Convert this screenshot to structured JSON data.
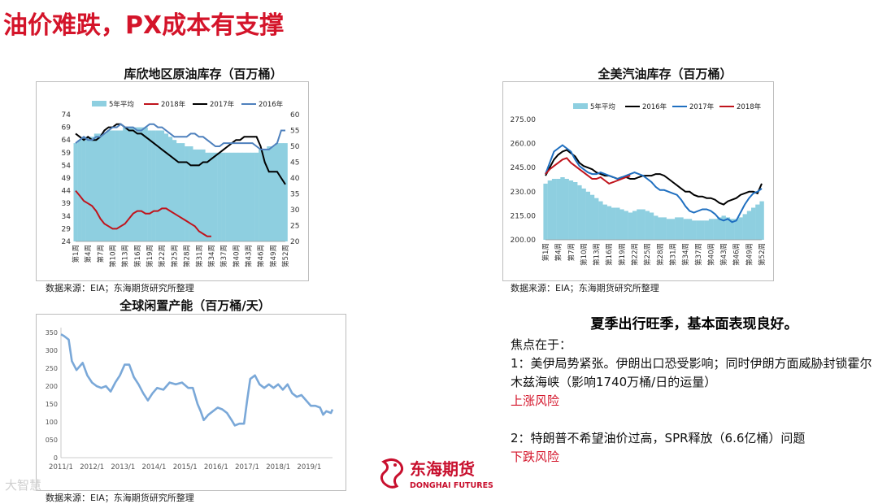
{
  "slide_title": "油价难跌，PX成本有支撑",
  "charts": {
    "c1": {
      "title": "库欣地区原油库存（百万桶）",
      "source": "数据来源：EIA；东海期货研究所整理"
    },
    "c2": {
      "title": "全美汽油库存（百万桶）",
      "source": "数据来源：EIA；东海期货研究所整理"
    },
    "c3": {
      "title": "全球闲置产能（百万桶/天）",
      "source": "数据来源：EIA；东海期货研究所整理"
    }
  },
  "analysis": {
    "headline": "夏季出行旺季，基本面表现良好。",
    "intro": "焦点在于：",
    "point1": "1：美伊局势紧张。伊朗出口恐受影响；同时伊朗方面威胁封锁霍尔木兹海峡（影响1740万桶/日的运量）",
    "risk1": "上涨风险",
    "point2": "2：特朗普不希望油价过高，SPR释放（6.6亿桶）问题",
    "risk2": "下跌风险"
  },
  "logo": {
    "cn": "东海期货",
    "en": "DONGHAI FUTURES",
    "color": "#c8102e"
  },
  "watermark": "大智慧",
  "chart_data": [
    {
      "id": "c1",
      "type": "area+line",
      "legend": [
        "5年平均",
        "2018年",
        "2017年",
        "2016年"
      ],
      "colors": {
        "5年平均": "#8ecfe0",
        "2018年": "#c0141c",
        "2017年": "#000000",
        "2016年": "#4f81bd"
      },
      "yleft": {
        "min": 24,
        "max": 74,
        "ticks": [
          24,
          29,
          34,
          39,
          44,
          49,
          54,
          59,
          64,
          69,
          74
        ]
      },
      "yright": {
        "min": 20,
        "max": 60,
        "ticks": [
          20,
          25,
          30,
          35,
          40,
          45,
          50,
          55,
          60
        ]
      },
      "xticks": [
        "第1周",
        "第4周",
        "第7周",
        "第10周",
        "第13周",
        "第16周",
        "第19周",
        "第22周",
        "第25周",
        "第28周",
        "第31周",
        "第34周",
        "第37周",
        "第40周",
        "第43周",
        "第46周",
        "第49周",
        "第52周"
      ],
      "weeks": 52,
      "area_axis": "right",
      "area": [
        51,
        52,
        53,
        53,
        53,
        54,
        54,
        54,
        55,
        55,
        55,
        55,
        56,
        56,
        56,
        56,
        56,
        56,
        55,
        55,
        55,
        55,
        54,
        53,
        52,
        51,
        51,
        50,
        50,
        49,
        49,
        49,
        48,
        48,
        48,
        48,
        48,
        48,
        48,
        48,
        48,
        48,
        48,
        48,
        48,
        49,
        49,
        50,
        50,
        51,
        51,
        51
      ],
      "series": [
        {
          "name": "2018年",
          "axis": "left",
          "values": [
            44,
            42,
            40,
            39,
            38,
            36,
            33,
            31,
            30,
            29,
            29,
            30,
            31,
            33,
            35,
            36,
            36,
            35,
            35,
            36,
            36,
            37,
            37,
            36,
            35,
            34,
            33,
            32,
            31,
            30,
            28,
            27,
            26,
            26,
            null,
            null,
            null,
            null,
            null,
            null,
            null,
            null,
            null,
            null,
            null,
            null,
            null,
            null,
            null,
            null,
            null,
            null
          ]
        },
        {
          "name": "2017年",
          "axis": "right",
          "values": [
            54,
            53,
            52,
            53,
            52,
            52,
            53,
            55,
            56,
            56,
            57,
            57,
            56,
            55,
            55,
            54,
            54,
            53,
            52,
            51,
            50,
            49,
            48,
            47,
            46,
            45,
            45,
            45,
            44,
            44,
            44,
            45,
            45,
            46,
            47,
            48,
            49,
            50,
            51,
            52,
            52,
            53,
            53,
            53,
            53,
            50,
            45,
            42,
            42,
            42,
            40,
            38
          ]
        },
        {
          "name": "2016年",
          "axis": "right",
          "values": [
            51,
            52,
            53,
            52,
            52,
            53,
            53,
            54,
            55,
            56,
            56,
            57,
            56,
            56,
            56,
            55,
            55,
            56,
            57,
            57,
            56,
            56,
            55,
            54,
            53,
            53,
            53,
            53,
            54,
            54,
            53,
            53,
            52,
            51,
            50,
            50,
            51,
            51,
            51,
            51,
            51,
            51,
            51,
            51,
            50,
            49,
            49,
            49,
            50,
            51,
            55,
            55
          ]
        }
      ]
    },
    {
      "id": "c2",
      "type": "area+line",
      "legend": [
        "5年平均",
        "2016年",
        "2017年",
        "2018年"
      ],
      "colors": {
        "5年平均": "#8ecfe0",
        "2016年": "#000000",
        "2017年": "#1f6fc0",
        "2018年": "#c0141c"
      },
      "y": {
        "min": 200,
        "max": 275,
        "ticks": [
          "200.00",
          "215.00",
          "230.00",
          "245.00",
          "260.00",
          "275.00"
        ]
      },
      "xticks": [
        "第1周",
        "第4周",
        "第7周",
        "第10周",
        "第13周",
        "第16周",
        "第19周",
        "第22周",
        "第25周",
        "第28周",
        "第31周",
        "第34周",
        "第37周",
        "第40周",
        "第43周",
        "第46周",
        "第49周",
        "第52周"
      ],
      "weeks": 52,
      "area": [
        235,
        237,
        238,
        238,
        239,
        238,
        237,
        236,
        234,
        232,
        230,
        228,
        226,
        224,
        222,
        221,
        220,
        220,
        219,
        218,
        217,
        218,
        219,
        219,
        218,
        217,
        215,
        214,
        214,
        213,
        213,
        214,
        214,
        213,
        213,
        212,
        212,
        212,
        212,
        213,
        213,
        214,
        215,
        214,
        213,
        213,
        214,
        216,
        218,
        220,
        222,
        224
      ],
      "series": [
        {
          "name": "2016年",
          "values": [
            240,
            245,
            250,
            253,
            255,
            256,
            254,
            252,
            248,
            246,
            245,
            244,
            242,
            241,
            240,
            240,
            239,
            238,
            239,
            239,
            238,
            238,
            239,
            240,
            240,
            240,
            241,
            241,
            240,
            238,
            236,
            234,
            232,
            230,
            230,
            228,
            227,
            227,
            226,
            226,
            225,
            223,
            222,
            224,
            225,
            226,
            228,
            229,
            230,
            230,
            229,
            235
          ]
        },
        {
          "name": "2017年",
          "values": [
            241,
            248,
            255,
            257,
            259,
            257,
            255,
            250,
            246,
            244,
            242,
            241,
            241,
            242,
            241,
            240,
            239,
            238,
            239,
            240,
            241,
            242,
            241,
            240,
            238,
            236,
            233,
            231,
            231,
            230,
            229,
            228,
            225,
            221,
            218,
            217,
            218,
            219,
            219,
            218,
            216,
            213,
            212,
            213,
            211,
            212,
            217,
            222,
            226,
            229,
            230,
            232
          ]
        },
        {
          "name": "2018年",
          "values": [
            241,
            244,
            246,
            248,
            250,
            251,
            248,
            246,
            244,
            242,
            240,
            238,
            238,
            239,
            237,
            235,
            236,
            237,
            238,
            239,
            240,
            null,
            null,
            null,
            null,
            null,
            null,
            null,
            null,
            null,
            null,
            null,
            null,
            null,
            null,
            null,
            null,
            null,
            null,
            null,
            null,
            null,
            null,
            null,
            null,
            null,
            null,
            null,
            null,
            null,
            null,
            null
          ]
        }
      ]
    },
    {
      "id": "c3",
      "type": "line",
      "color": "#7aa8d8",
      "xticks": [
        "2011/1",
        "2012/1",
        "2013/1",
        "2014/1",
        "2015/1",
        "2016/1",
        "2017/1",
        "2018/1",
        "2019/1"
      ],
      "yticks": [
        "0",
        "050",
        "100",
        "150",
        "200",
        "250",
        "300",
        "350"
      ],
      "y": {
        "min": 0,
        "max": 3.5
      },
      "x": {
        "min": 2011.0,
        "max": 2019.75
      },
      "points": [
        [
          2011.0,
          3.45
        ],
        [
          2011.1,
          3.4
        ],
        [
          2011.25,
          3.3
        ],
        [
          2011.35,
          2.7
        ],
        [
          2011.5,
          2.45
        ],
        [
          2011.7,
          2.65
        ],
        [
          2011.85,
          2.3
        ],
        [
          2012.0,
          2.1
        ],
        [
          2012.15,
          2.0
        ],
        [
          2012.3,
          1.95
        ],
        [
          2012.45,
          2.0
        ],
        [
          2012.6,
          1.85
        ],
        [
          2012.75,
          2.1
        ],
        [
          2012.9,
          2.3
        ],
        [
          2013.05,
          2.6
        ],
        [
          2013.2,
          2.6
        ],
        [
          2013.35,
          2.25
        ],
        [
          2013.5,
          2.05
        ],
        [
          2013.65,
          1.8
        ],
        [
          2013.8,
          1.6
        ],
        [
          2013.95,
          1.8
        ],
        [
          2014.1,
          1.95
        ],
        [
          2014.3,
          1.9
        ],
        [
          2014.5,
          2.1
        ],
        [
          2014.7,
          2.05
        ],
        [
          2014.9,
          2.1
        ],
        [
          2015.1,
          1.95
        ],
        [
          2015.25,
          1.95
        ],
        [
          2015.4,
          1.5
        ],
        [
          2015.5,
          1.3
        ],
        [
          2015.6,
          1.05
        ],
        [
          2015.75,
          1.2
        ],
        [
          2015.9,
          1.3
        ],
        [
          2016.05,
          1.4
        ],
        [
          2016.2,
          1.35
        ],
        [
          2016.35,
          1.25
        ],
        [
          2016.5,
          1.05
        ],
        [
          2016.6,
          0.9
        ],
        [
          2016.75,
          0.95
        ],
        [
          2016.9,
          0.95
        ],
        [
          2017.0,
          1.6
        ],
        [
          2017.1,
          2.2
        ],
        [
          2017.25,
          2.3
        ],
        [
          2017.4,
          2.05
        ],
        [
          2017.55,
          1.95
        ],
        [
          2017.7,
          2.05
        ],
        [
          2017.85,
          1.95
        ],
        [
          2018.0,
          2.05
        ],
        [
          2018.15,
          1.9
        ],
        [
          2018.3,
          2.05
        ],
        [
          2018.45,
          1.8
        ],
        [
          2018.6,
          1.7
        ],
        [
          2018.75,
          1.75
        ],
        [
          2018.9,
          1.6
        ],
        [
          2019.05,
          1.45
        ],
        [
          2019.2,
          1.45
        ],
        [
          2019.35,
          1.4
        ],
        [
          2019.45,
          1.2
        ],
        [
          2019.55,
          1.3
        ],
        [
          2019.7,
          1.25
        ],
        [
          2019.75,
          1.35
        ]
      ]
    }
  ]
}
